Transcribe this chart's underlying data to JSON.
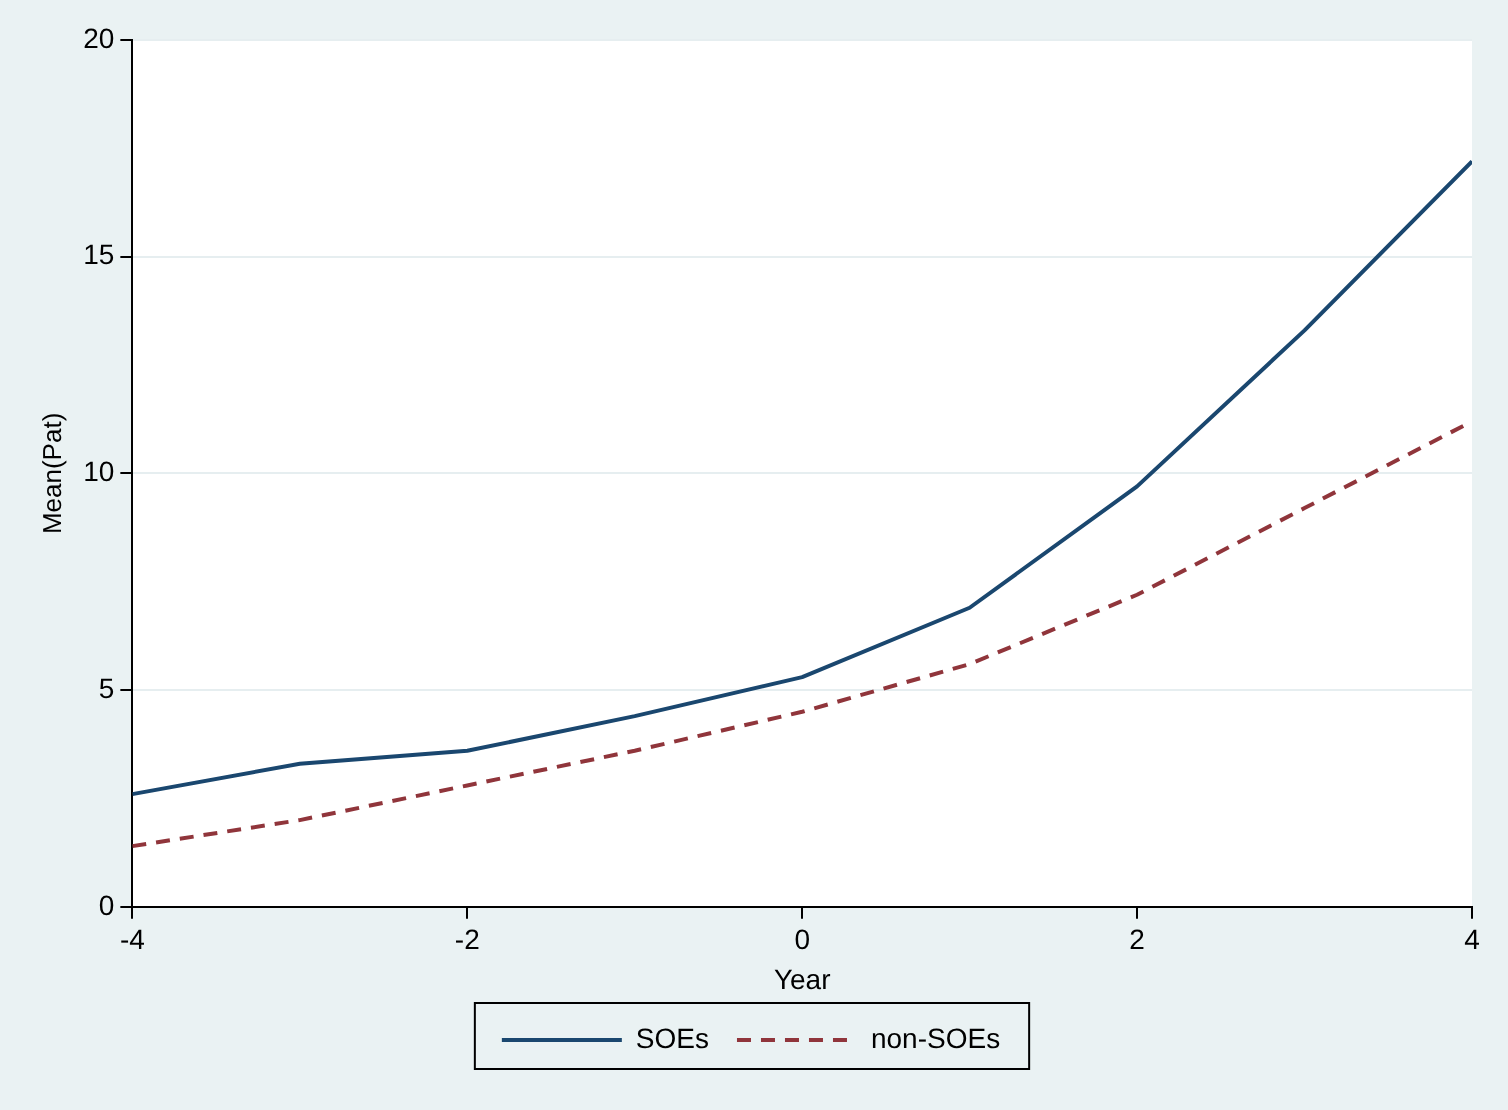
{
  "chart_data": {
    "type": "line",
    "xlabel": "Year",
    "ylabel": "Mean(Pat)",
    "x": [
      -4,
      -3,
      -2,
      -1,
      0,
      1,
      2,
      3,
      4
    ],
    "series": [
      {
        "name": "SOEs",
        "color": "#1a476f",
        "line_style": "solid",
        "values": [
          2.6,
          3.3,
          3.6,
          4.4,
          5.3,
          6.9,
          9.7,
          13.3,
          17.2
        ]
      },
      {
        "name": "non-SOEs",
        "color": "#90353b",
        "line_style": "dashed",
        "values": [
          1.4,
          2.0,
          2.8,
          3.6,
          4.5,
          5.6,
          7.2,
          9.2,
          11.2
        ]
      }
    ],
    "xlim": [
      -4,
      4
    ],
    "xticks": [
      -4,
      -2,
      0,
      2,
      4
    ],
    "ylim": [
      0,
      20
    ],
    "yticks": [
      0,
      5,
      10,
      15,
      20
    ],
    "grid": "y",
    "legend": "bottom",
    "marker": "none"
  }
}
